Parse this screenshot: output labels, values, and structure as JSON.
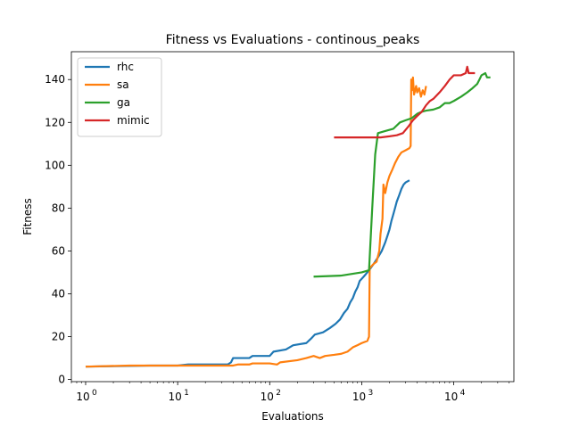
{
  "chart_data": {
    "type": "line",
    "title": "Fitness vs Evaluations - continous_peaks",
    "xlabel": "Evaluations",
    "ylabel": "Fitness",
    "xscale": "log",
    "xlim": [
      0.7,
      45000
    ],
    "ylim": [
      -1,
      153
    ],
    "xticks": [
      {
        "value": 1,
        "base": "10",
        "exp": "0"
      },
      {
        "value": 10,
        "base": "10",
        "exp": "1"
      },
      {
        "value": 100,
        "base": "10",
        "exp": "2"
      },
      {
        "value": 1000,
        "base": "10",
        "exp": "3"
      },
      {
        "value": 10000,
        "base": "10",
        "exp": "4"
      }
    ],
    "yticks": [
      0,
      20,
      40,
      60,
      80,
      100,
      120,
      140
    ],
    "grid": false,
    "legend_position": "upper-left",
    "series": [
      {
        "name": "rhc",
        "color": "#1f77b4",
        "points": [
          [
            1,
            6
          ],
          [
            5,
            6.5
          ],
          [
            10,
            6.5
          ],
          [
            13,
            7
          ],
          [
            35,
            7
          ],
          [
            38,
            8
          ],
          [
            40,
            10
          ],
          [
            60,
            10
          ],
          [
            65,
            11
          ],
          [
            100,
            11
          ],
          [
            110,
            13
          ],
          [
            150,
            14
          ],
          [
            180,
            16
          ],
          [
            250,
            17
          ],
          [
            280,
            19
          ],
          [
            310,
            21
          ],
          [
            380,
            22
          ],
          [
            450,
            24
          ],
          [
            520,
            26
          ],
          [
            580,
            28
          ],
          [
            640,
            31
          ],
          [
            700,
            33
          ],
          [
            750,
            36
          ],
          [
            800,
            38
          ],
          [
            850,
            41
          ],
          [
            900,
            43
          ],
          [
            950,
            46
          ],
          [
            1050,
            48
          ],
          [
            1150,
            50
          ],
          [
            1250,
            52
          ],
          [
            1350,
            54
          ],
          [
            1500,
            57
          ],
          [
            1650,
            60
          ],
          [
            1800,
            64
          ],
          [
            1900,
            67
          ],
          [
            2000,
            70
          ],
          [
            2100,
            74
          ],
          [
            2200,
            77
          ],
          [
            2300,
            80
          ],
          [
            2400,
            83
          ],
          [
            2550,
            86
          ],
          [
            2700,
            89
          ],
          [
            2850,
            91
          ],
          [
            3000,
            92
          ],
          [
            3300,
            93
          ]
        ]
      },
      {
        "name": "sa",
        "color": "#ff7f0e",
        "points": [
          [
            1,
            6
          ],
          [
            3,
            6.5
          ],
          [
            10,
            6.5
          ],
          [
            40,
            6.5
          ],
          [
            45,
            7
          ],
          [
            60,
            7
          ],
          [
            65,
            7.5
          ],
          [
            100,
            7.5
          ],
          [
            120,
            7
          ],
          [
            130,
            8
          ],
          [
            200,
            9
          ],
          [
            250,
            10
          ],
          [
            300,
            11
          ],
          [
            350,
            10
          ],
          [
            400,
            11
          ],
          [
            500,
            11.5
          ],
          [
            600,
            12
          ],
          [
            700,
            13
          ],
          [
            800,
            15
          ],
          [
            900,
            16
          ],
          [
            1000,
            17
          ],
          [
            1150,
            18
          ],
          [
            1200,
            20
          ],
          [
            1220,
            52
          ],
          [
            1350,
            54
          ],
          [
            1450,
            55
          ],
          [
            1550,
            60
          ],
          [
            1600,
            68
          ],
          [
            1680,
            75
          ],
          [
            1720,
            91
          ],
          [
            1800,
            87
          ],
          [
            1900,
            92
          ],
          [
            2000,
            95
          ],
          [
            2150,
            98
          ],
          [
            2300,
            101
          ],
          [
            2500,
            104
          ],
          [
            2700,
            106
          ],
          [
            3000,
            107
          ],
          [
            3300,
            108
          ],
          [
            3400,
            109
          ],
          [
            3450,
            140
          ],
          [
            3500,
            135
          ],
          [
            3600,
            141
          ],
          [
            3700,
            133
          ],
          [
            3800,
            135
          ],
          [
            3900,
            137
          ],
          [
            4000,
            134
          ],
          [
            4200,
            136
          ],
          [
            4400,
            132
          ],
          [
            4600,
            135
          ],
          [
            4800,
            133
          ],
          [
            5000,
            137
          ]
        ]
      },
      {
        "name": "ga",
        "color": "#2ca02c",
        "points": [
          [
            300,
            48
          ],
          [
            600,
            48.5
          ],
          [
            1000,
            50
          ],
          [
            1200,
            51
          ],
          [
            1300,
            80
          ],
          [
            1400,
            105
          ],
          [
            1500,
            115
          ],
          [
            1800,
            116
          ],
          [
            2200,
            117
          ],
          [
            2600,
            120
          ],
          [
            3000,
            121
          ],
          [
            3500,
            122
          ],
          [
            4000,
            124
          ],
          [
            4500,
            125
          ],
          [
            5000,
            125.5
          ],
          [
            6000,
            126
          ],
          [
            7000,
            127
          ],
          [
            8000,
            129
          ],
          [
            9000,
            129
          ],
          [
            10000,
            130
          ],
          [
            12000,
            132
          ],
          [
            14000,
            134
          ],
          [
            16000,
            136
          ],
          [
            18000,
            138
          ],
          [
            19000,
            140
          ],
          [
            20000,
            142
          ],
          [
            22000,
            143
          ],
          [
            23000,
            141
          ],
          [
            25000,
            141
          ]
        ]
      },
      {
        "name": "mimic",
        "color": "#d62728",
        "points": [
          [
            500,
            113
          ],
          [
            800,
            113
          ],
          [
            1200,
            113
          ],
          [
            1600,
            113
          ],
          [
            2000,
            113.5
          ],
          [
            2400,
            114
          ],
          [
            2800,
            115
          ],
          [
            3200,
            118
          ],
          [
            3600,
            121
          ],
          [
            4000,
            123
          ],
          [
            4500,
            125
          ],
          [
            5000,
            128
          ],
          [
            5500,
            130
          ],
          [
            6000,
            131
          ],
          [
            7000,
            134
          ],
          [
            8000,
            137
          ],
          [
            9000,
            140
          ],
          [
            10000,
            142
          ],
          [
            12000,
            142
          ],
          [
            13500,
            143
          ],
          [
            14000,
            146
          ],
          [
            14500,
            143
          ],
          [
            15000,
            143
          ],
          [
            17000,
            143
          ]
        ]
      }
    ]
  }
}
